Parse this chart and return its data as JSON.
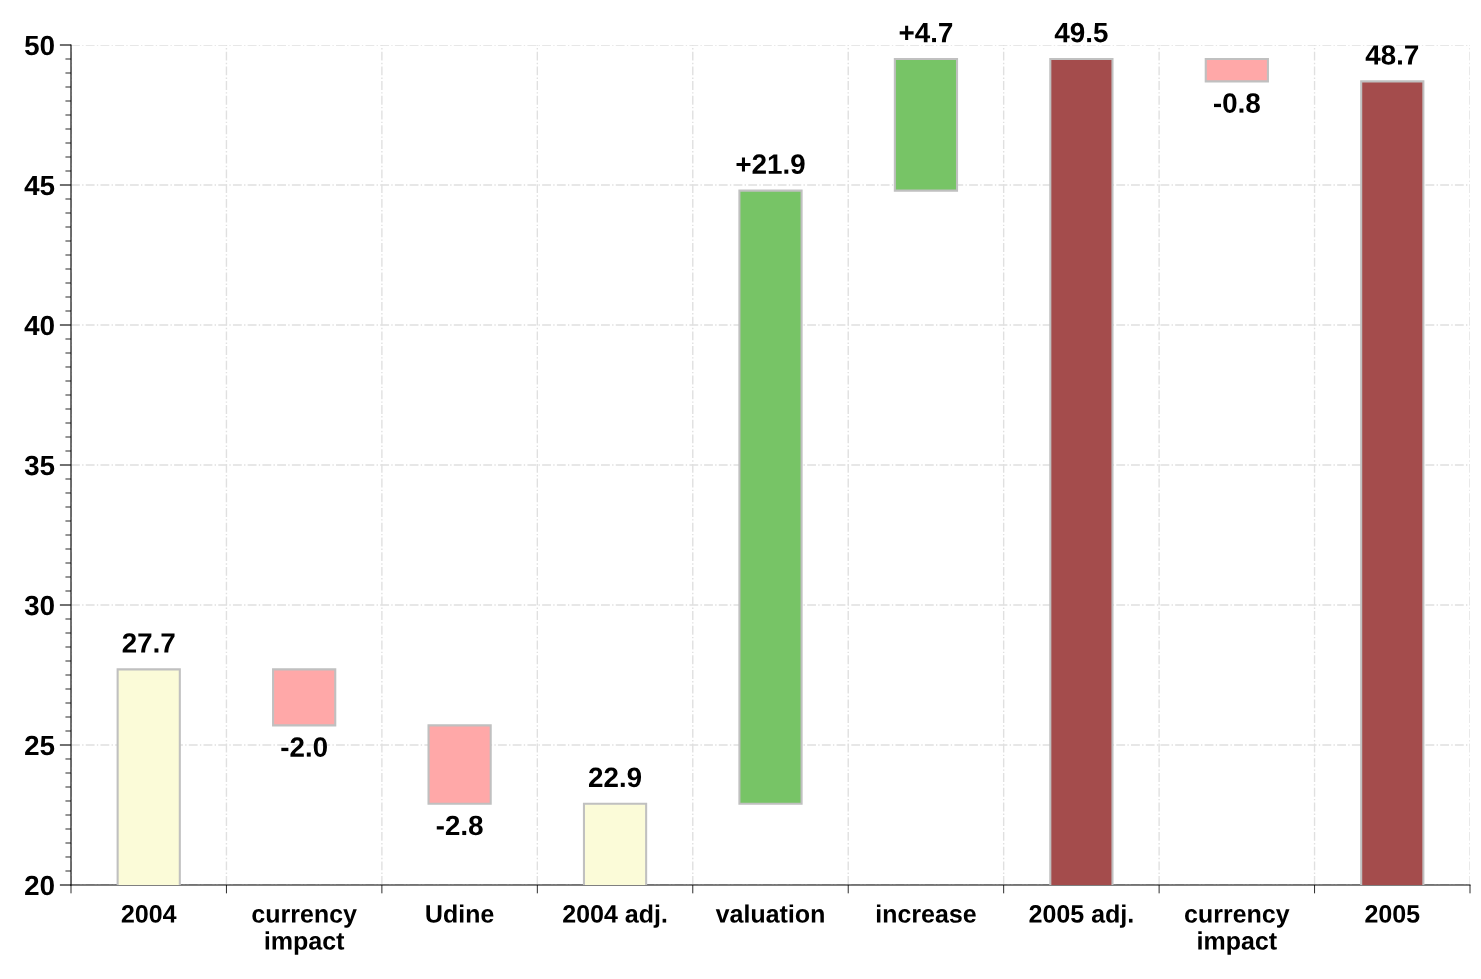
{
  "chart_data": {
    "type": "bar",
    "categories": [
      "2004",
      "currency\nimpact",
      "Udine",
      "2004 adj.",
      "valuation",
      "increase",
      "2005 adj.",
      "currency\nimpact",
      "2005"
    ],
    "values": [
      27.7,
      -2.0,
      -2.8,
      22.9,
      21.9,
      4.7,
      49.5,
      -0.8,
      48.7
    ],
    "base": [
      0,
      27.7,
      25.7,
      0,
      22.9,
      44.8,
      0,
      49.5,
      0
    ],
    "colors": [
      "#fbfbd8",
      "#ffa8a8",
      "#ffa8a8",
      "#fbfbd8",
      "#77c466",
      "#77c466",
      "#a44c4c",
      "#ffa8a8",
      "#a44c4c"
    ],
    "value_labels": [
      "27.7",
      "-2.0",
      "-2.8",
      "22.9",
      "+21.9",
      "+4.7",
      "49.5",
      "-0.8",
      "48.7"
    ],
    "ylim": [
      20,
      50
    ],
    "yticks": [
      20,
      25,
      30,
      35,
      40,
      45,
      50
    ],
    "grid": true
  }
}
